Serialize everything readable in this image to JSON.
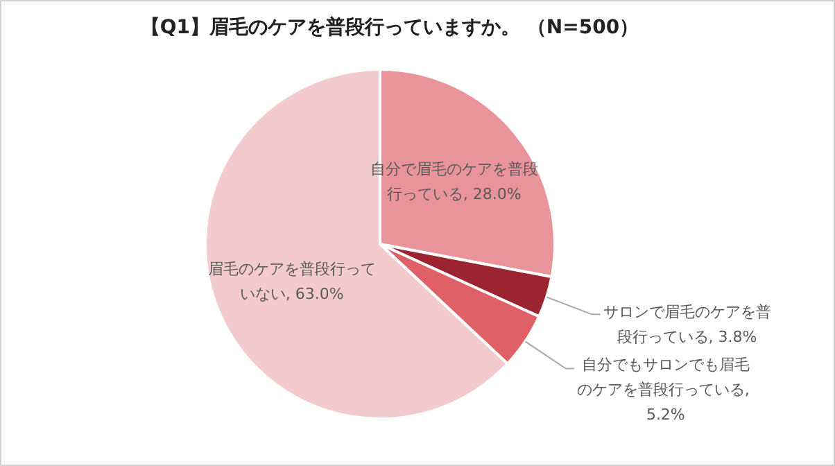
{
  "chart_data": {
    "type": "pie",
    "title": "【Q1】眉毛のケアを普段行っていますか。 （N=500）",
    "categories": [
      "自分で眉毛のケアを普段行っている, 28.0%",
      "サロンで眉毛のケアを普段行っている, 3.8%",
      "自分でもサロンでも眉毛のケアを普段行っている, 5.2%",
      "眉毛のケアを普段行っていない, 63.0%"
    ],
    "values": [
      28.0,
      3.8,
      5.2,
      63.0
    ],
    "colors": [
      "#e8949a",
      "#9c2330",
      "#df6167",
      "#f4cbcc"
    ]
  }
}
